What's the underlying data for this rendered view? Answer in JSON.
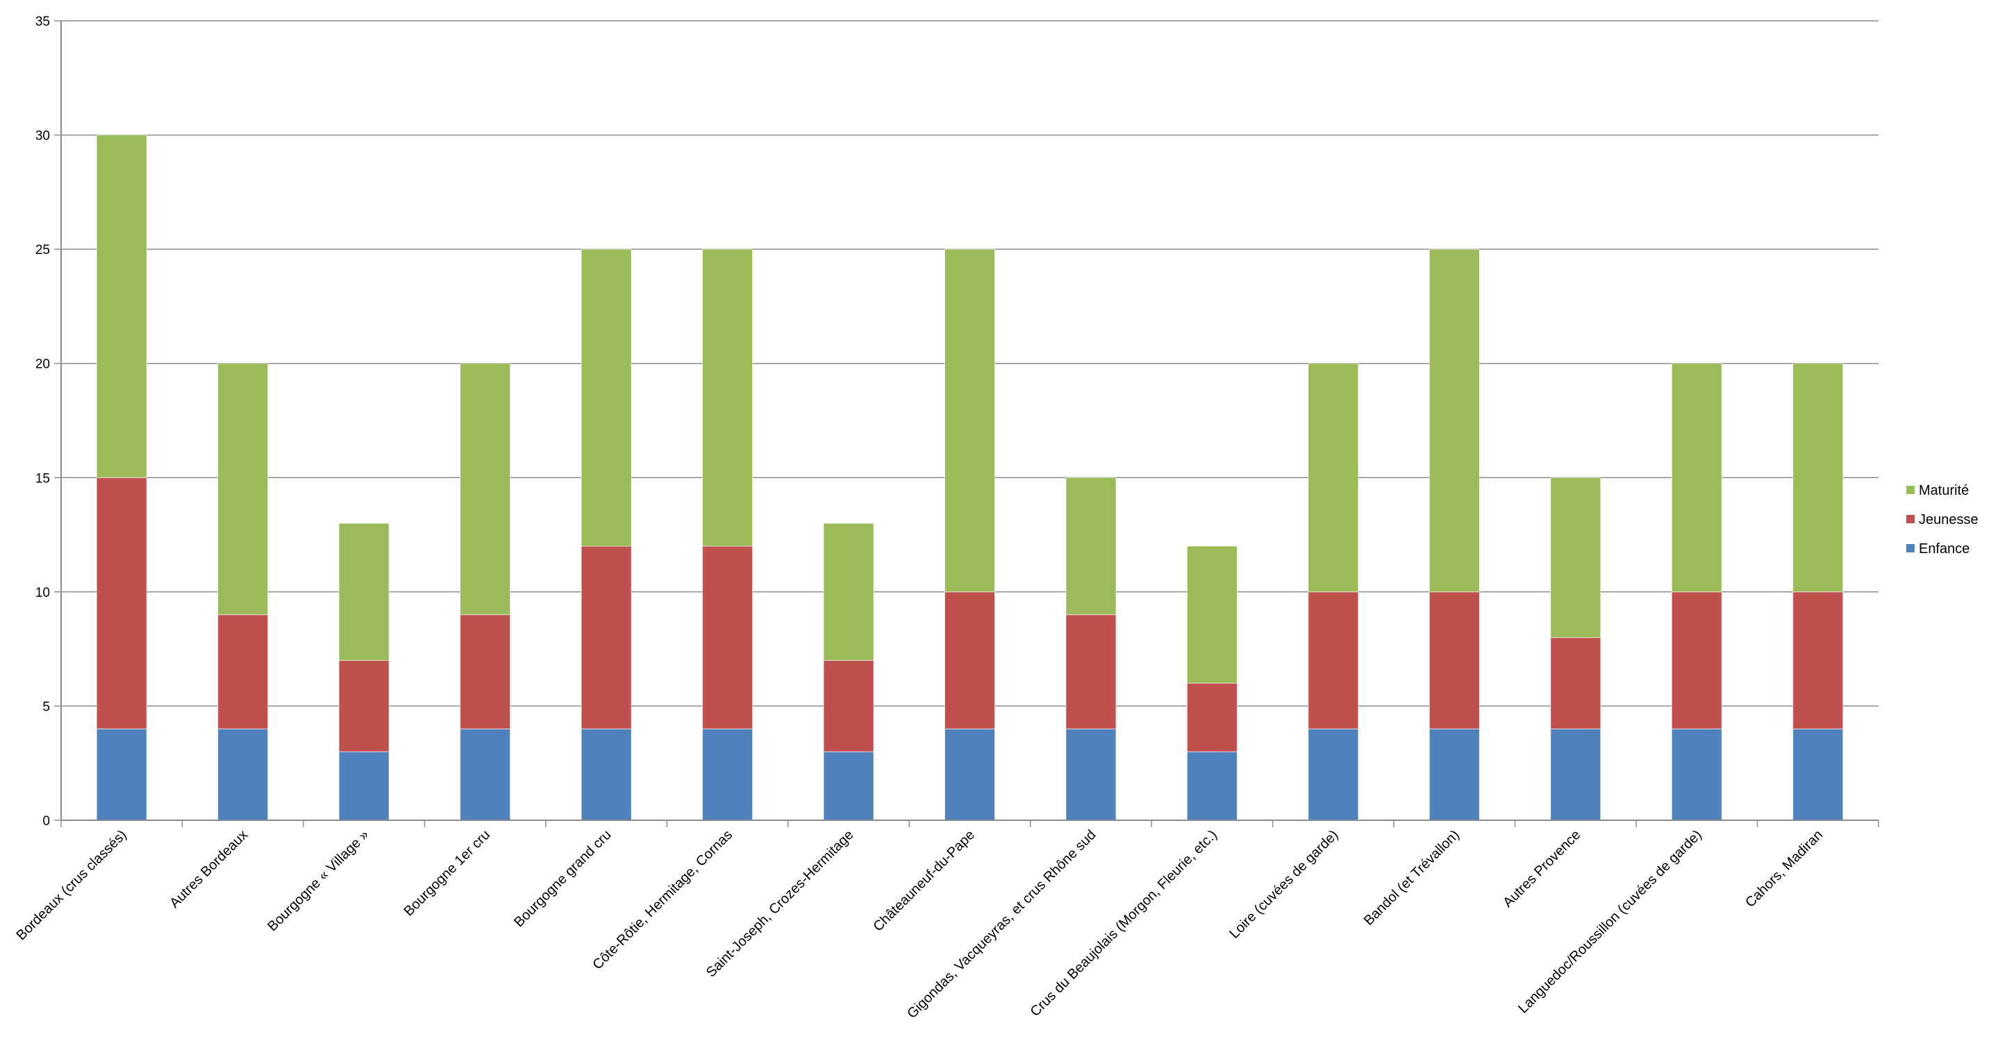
{
  "chart_data": {
    "type": "bar",
    "stacked": true,
    "categories": [
      "Bordeaux (crus classés)",
      "Autres Bordeaux",
      "Bourgogne « Village »",
      "Bourgogne 1er cru",
      "Bourgogne grand cru",
      "Côte-Rôtie, Hermitage, Cornas",
      "Saint-Joseph, Crozes-Hermitage",
      "Châteauneuf-du-Pape",
      "Gigondas, Vacqueyras, et crus Rhône sud",
      "Crus du Beaujolais (Morgon, Fleurie, etc.)",
      "Loire (cuvées de garde)",
      "Bandol (et Trévallon)",
      "Autres Provence",
      "Languedoc/Roussillon (cuvées de garde)",
      "Cahors, Madiran"
    ],
    "series": [
      {
        "name": "Enfance",
        "color": "#4f81bd",
        "values": [
          4,
          4,
          3,
          4,
          4,
          4,
          3,
          4,
          4,
          3,
          4,
          4,
          4,
          4,
          4
        ]
      },
      {
        "name": "Jeunesse",
        "color": "#c0504d",
        "values": [
          11,
          5,
          4,
          5,
          8,
          8,
          4,
          6,
          5,
          3,
          6,
          6,
          4,
          6,
          6
        ]
      },
      {
        "name": "Maturité",
        "color": "#9bbb59",
        "values": [
          15,
          11,
          6,
          11,
          13,
          13,
          6,
          15,
          6,
          6,
          10,
          15,
          7,
          10,
          10
        ]
      }
    ],
    "legend_order": [
      "Maturité",
      "Jeunesse",
      "Enfance"
    ],
    "y_ticks": [
      "0",
      "5",
      "10",
      "15",
      "20",
      "25",
      "30",
      "35"
    ],
    "ylim": [
      0,
      35
    ],
    "grid": true,
    "legend_position": "right",
    "title": "",
    "xlabel": "",
    "ylabel": ""
  }
}
